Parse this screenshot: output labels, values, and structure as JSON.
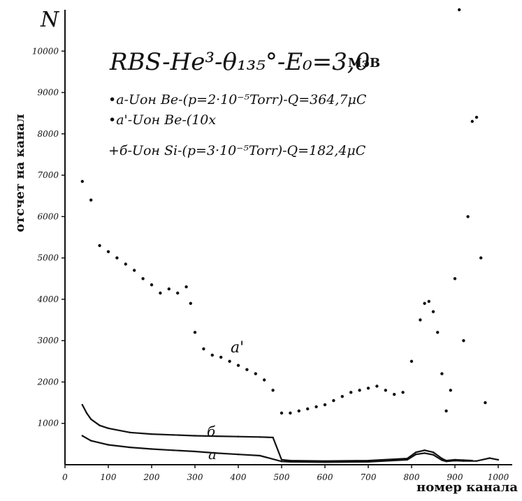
{
  "chart_data": {
    "type": "scatter",
    "y_axis_symbol": "N",
    "ylabel": "отсчет на канал",
    "xlabel": "номер канала",
    "xlim": [
      0,
      1000
    ],
    "ylim": [
      0,
      11000
    ],
    "x_ticks": [
      0,
      100,
      200,
      300,
      400,
      500,
      600,
      700,
      800,
      900,
      1000
    ],
    "y_ticks": [
      1000,
      2000,
      3000,
      4000,
      5000,
      6000,
      7000,
      8000,
      9000,
      10000
    ],
    "grid": false,
    "title_main": "RBS-He³-θ₁₃₅°-E₀=3,0",
    "title_unit": "МэВ",
    "legend": [
      "•а-Uон Be-(p=2·10⁻⁵Torr)-Q=364,7μC",
      "•а'-Uон Be-(10x",
      "+б-Uон Si-(p=3·10⁻⁵Torr)-Q=182,4μC"
    ],
    "annotations": [
      "а'",
      "б",
      "а"
    ],
    "series": [
      {
        "name": "а'",
        "style": "scatter",
        "points": [
          [
            40,
            6850
          ],
          [
            60,
            6400
          ],
          [
            80,
            5300
          ],
          [
            100,
            5150
          ],
          [
            120,
            5000
          ],
          [
            140,
            4850
          ],
          [
            160,
            4700
          ],
          [
            180,
            4500
          ],
          [
            200,
            4350
          ],
          [
            220,
            4150
          ],
          [
            240,
            4250
          ],
          [
            260,
            4150
          ],
          [
            280,
            4300
          ],
          [
            290,
            3900
          ],
          [
            300,
            3200
          ],
          [
            320,
            2800
          ],
          [
            340,
            2650
          ],
          [
            360,
            2600
          ],
          [
            380,
            2500
          ],
          [
            400,
            2400
          ],
          [
            420,
            2300
          ],
          [
            440,
            2200
          ],
          [
            460,
            2050
          ],
          [
            480,
            1800
          ],
          [
            500,
            1250
          ],
          [
            520,
            1250
          ],
          [
            540,
            1300
          ],
          [
            560,
            1350
          ],
          [
            580,
            1400
          ],
          [
            600,
            1450
          ],
          [
            620,
            1550
          ],
          [
            640,
            1650
          ],
          [
            660,
            1750
          ],
          [
            680,
            1800
          ],
          [
            700,
            1850
          ],
          [
            720,
            1900
          ],
          [
            740,
            1800
          ],
          [
            760,
            1700
          ],
          [
            780,
            1750
          ],
          [
            800,
            2500
          ],
          [
            820,
            3500
          ],
          [
            830,
            3900
          ],
          [
            840,
            3950
          ],
          [
            850,
            3700
          ],
          [
            860,
            3200
          ],
          [
            870,
            2200
          ],
          [
            880,
            1300
          ],
          [
            890,
            1800
          ],
          [
            900,
            4500
          ],
          [
            910,
            11500
          ],
          [
            920,
            3000
          ],
          [
            930,
            6000
          ],
          [
            940,
            8300
          ],
          [
            950,
            8400
          ],
          [
            960,
            5000
          ],
          [
            970,
            1500
          ]
        ]
      },
      {
        "name": "б",
        "style": "line",
        "points": [
          [
            40,
            1450
          ],
          [
            50,
            1250
          ],
          [
            60,
            1100
          ],
          [
            80,
            950
          ],
          [
            100,
            880
          ],
          [
            150,
            780
          ],
          [
            200,
            740
          ],
          [
            250,
            720
          ],
          [
            300,
            700
          ],
          [
            350,
            690
          ],
          [
            400,
            680
          ],
          [
            450,
            670
          ],
          [
            480,
            660
          ],
          [
            500,
            120
          ],
          [
            520,
            100
          ],
          [
            600,
            90
          ],
          [
            700,
            100
          ],
          [
            790,
            150
          ],
          [
            810,
            300
          ],
          [
            830,
            350
          ],
          [
            850,
            300
          ],
          [
            870,
            150
          ],
          [
            880,
            100
          ],
          [
            900,
            120
          ],
          [
            920,
            110
          ],
          [
            940,
            100
          ]
        ]
      },
      {
        "name": "а",
        "style": "line",
        "points": [
          [
            40,
            700
          ],
          [
            60,
            580
          ],
          [
            100,
            480
          ],
          [
            150,
            420
          ],
          [
            200,
            380
          ],
          [
            250,
            350
          ],
          [
            300,
            320
          ],
          [
            350,
            280
          ],
          [
            400,
            250
          ],
          [
            450,
            220
          ],
          [
            500,
            80
          ],
          [
            520,
            70
          ],
          [
            600,
            60
          ],
          [
            700,
            70
          ],
          [
            790,
            120
          ],
          [
            810,
            250
          ],
          [
            830,
            280
          ],
          [
            850,
            240
          ],
          [
            870,
            110
          ],
          [
            880,
            80
          ],
          [
            900,
            100
          ],
          [
            920,
            90
          ],
          [
            950,
            90
          ],
          [
            980,
            160
          ],
          [
            1000,
            120
          ]
        ]
      }
    ]
  }
}
